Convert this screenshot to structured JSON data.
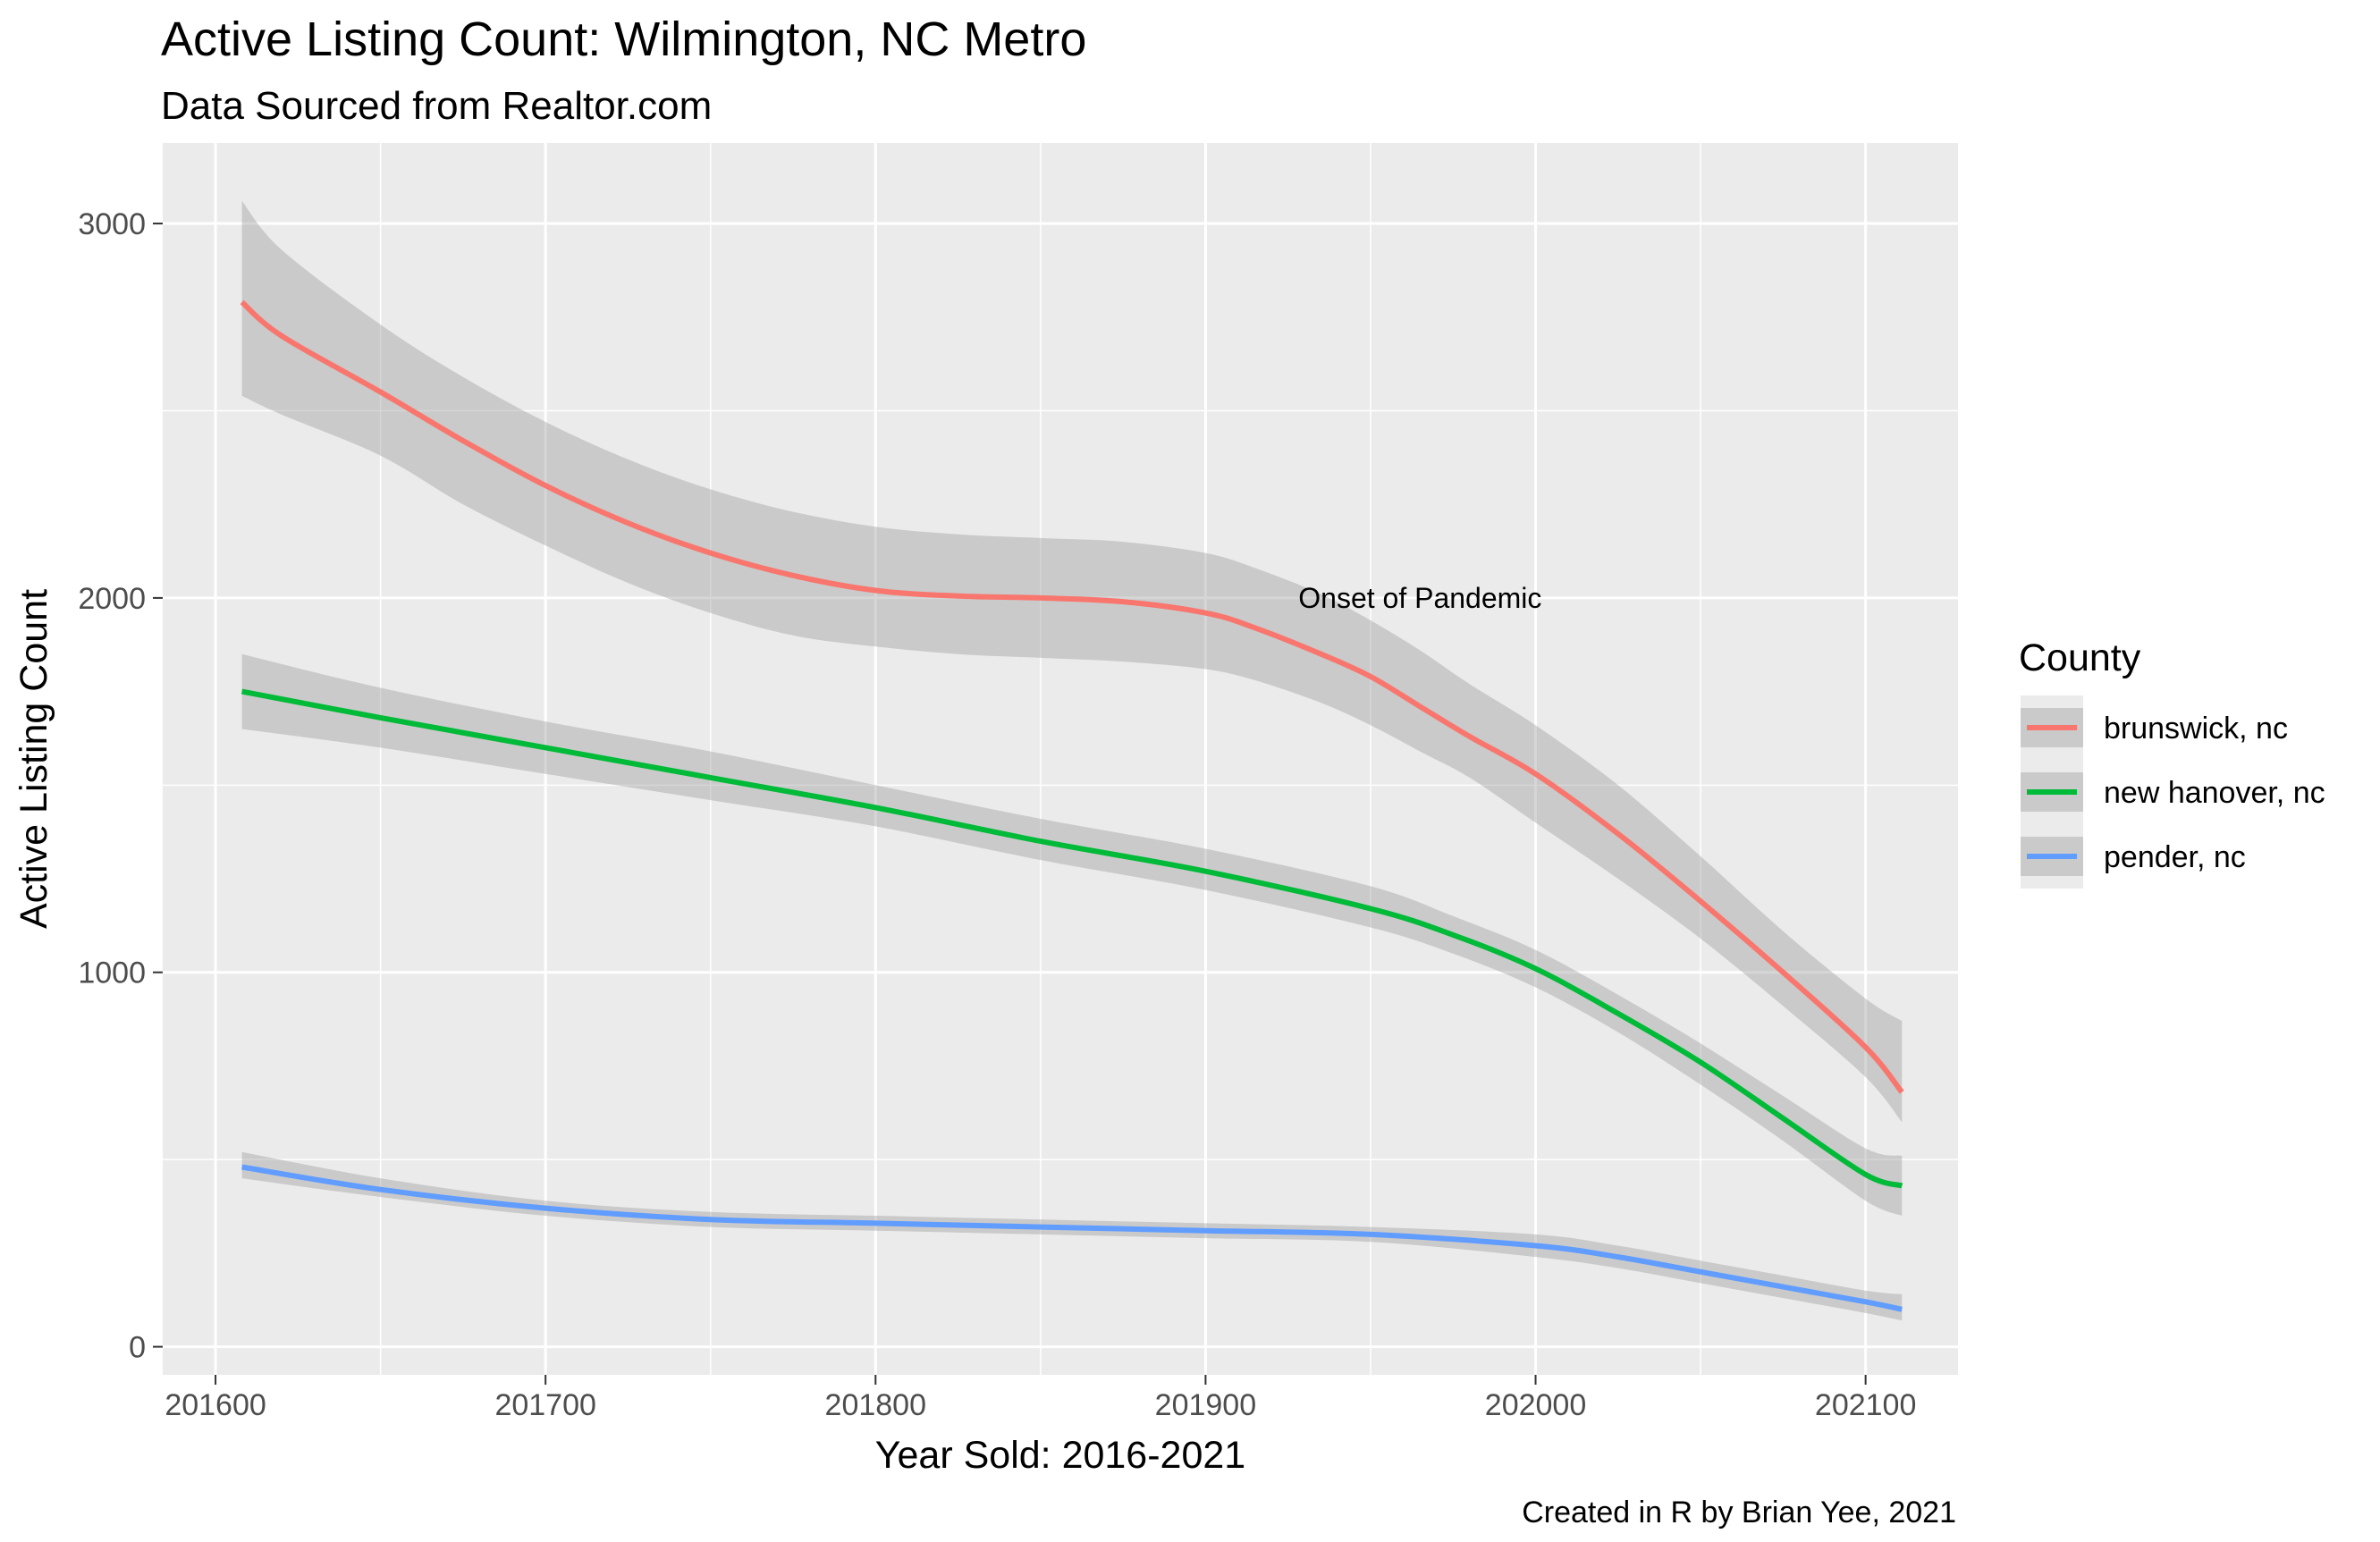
{
  "chart_data": {
    "type": "line",
    "title": "Active Listing Count: Wilmington, NC Metro",
    "subtitle": "Data Sourced from Realtor.com",
    "xlabel": "Year Sold: 2016-2021",
    "ylabel": "Active Listing Count",
    "caption": "Created in R by Brian Yee, 2021",
    "xlim": [
      201584,
      202128
    ],
    "ylim": [
      -75,
      3215
    ],
    "x_ticks": [
      201600,
      201700,
      201800,
      201900,
      202000,
      202100
    ],
    "y_ticks": [
      0,
      1000,
      2000,
      3000
    ],
    "grid": true,
    "legend": {
      "title": "County",
      "position": "right"
    },
    "annotation": {
      "text": "Onset of Pandemic",
      "x": 201965,
      "y": 2000
    },
    "series": [
      {
        "name": "brunswick, nc",
        "color": "#F8766D",
        "x": [
          201608,
          201620,
          201650,
          201675,
          201700,
          201725,
          201750,
          201775,
          201800,
          201825,
          201850,
          201875,
          201900,
          201915,
          201935,
          201950,
          201965,
          201980,
          202000,
          202025,
          202050,
          202075,
          202100,
          202111
        ],
        "y": [
          2790,
          2700,
          2550,
          2420,
          2300,
          2200,
          2120,
          2060,
          2020,
          2005,
          2000,
          1990,
          1960,
          1920,
          1850,
          1790,
          1710,
          1630,
          1530,
          1370,
          1190,
          1000,
          800,
          680
        ],
        "lower": [
          2540,
          2490,
          2380,
          2250,
          2140,
          2040,
          1960,
          1900,
          1870,
          1850,
          1840,
          1830,
          1810,
          1780,
          1720,
          1660,
          1590,
          1520,
          1400,
          1250,
          1090,
          910,
          720,
          600
        ],
        "upper": [
          3060,
          2930,
          2730,
          2590,
          2470,
          2370,
          2290,
          2230,
          2190,
          2170,
          2160,
          2150,
          2120,
          2080,
          2010,
          1940,
          1860,
          1770,
          1660,
          1500,
          1310,
          1110,
          930,
          870
        ]
      },
      {
        "name": "new hanover, nc",
        "color": "#00BA38",
        "x": [
          201608,
          201650,
          201700,
          201750,
          201800,
          201850,
          201900,
          201950,
          201975,
          202000,
          202025,
          202050,
          202075,
          202100,
          202111
        ],
        "y": [
          1750,
          1680,
          1600,
          1520,
          1440,
          1350,
          1270,
          1170,
          1100,
          1010,
          890,
          760,
          610,
          460,
          430
        ],
        "lower": [
          1650,
          1600,
          1530,
          1460,
          1390,
          1300,
          1220,
          1120,
          1050,
          960,
          840,
          700,
          550,
          390,
          350
        ],
        "upper": [
          1850,
          1760,
          1670,
          1590,
          1500,
          1410,
          1330,
          1230,
          1150,
          1060,
          940,
          810,
          670,
          530,
          510
        ]
      },
      {
        "name": "pender, nc",
        "color": "#619CFF",
        "x": [
          201608,
          201650,
          201700,
          201750,
          201800,
          201850,
          201900,
          201950,
          202000,
          202025,
          202050,
          202075,
          202100,
          202111
        ],
        "y": [
          480,
          420,
          370,
          340,
          330,
          320,
          310,
          300,
          270,
          240,
          200,
          160,
          120,
          100
        ],
        "lower": [
          450,
          400,
          350,
          320,
          310,
          300,
          290,
          280,
          240,
          210,
          170,
          130,
          90,
          70
        ],
        "upper": [
          520,
          450,
          390,
          360,
          350,
          340,
          330,
          320,
          300,
          270,
          230,
          190,
          150,
          140
        ]
      }
    ]
  }
}
